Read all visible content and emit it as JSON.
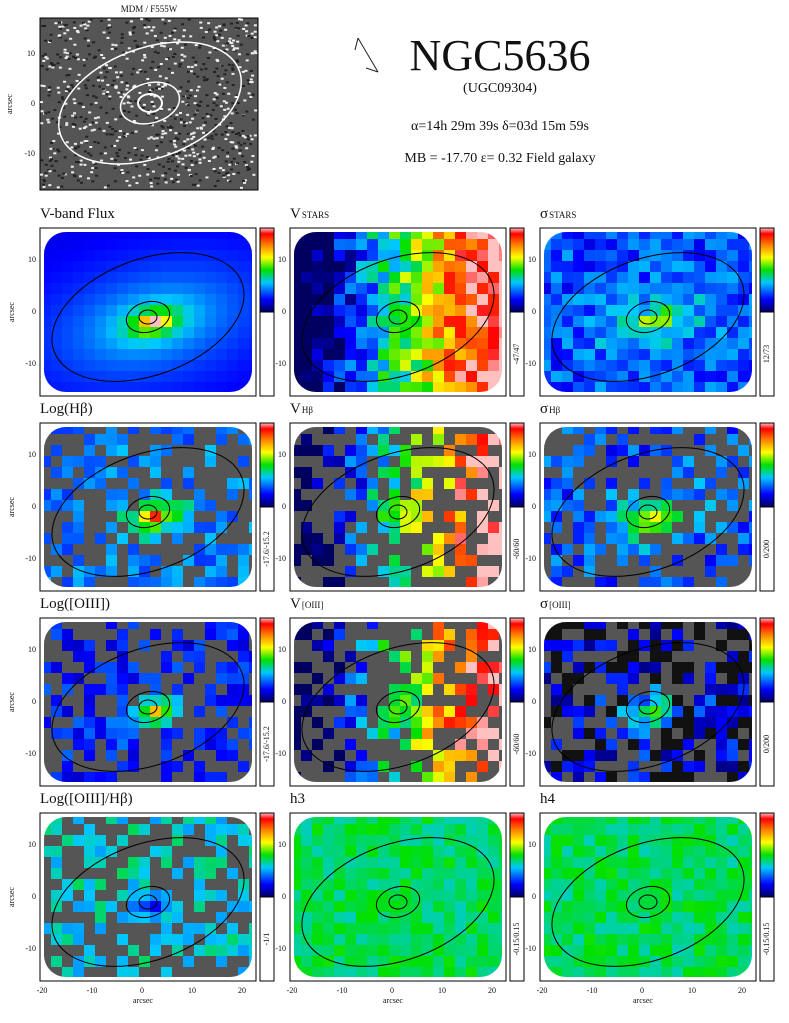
{
  "header": {
    "image_label": "MDM / F555W",
    "image_yticks": [
      "10",
      "0",
      "-10"
    ],
    "object": "NGC5636",
    "alt_name": "(UGC09304)",
    "coords": "α=14h 29m 39s    δ=03d 15m 59s",
    "properties": "MB = -17.70    ε= 0.32    Field galaxy"
  },
  "axes": {
    "axis_label": "arcsec",
    "xticks": [
      "-20",
      "-10",
      "0",
      "10",
      "20"
    ],
    "yticks": [
      "10",
      "0",
      "-10"
    ]
  },
  "panels": [
    {
      "title": "V-band Flux",
      "sub": ""
    },
    {
      "title": "V",
      "sub": "STARS",
      "range": "-47/47"
    },
    {
      "title": "σ",
      "sub": "STARS",
      "range": "12/73"
    },
    {
      "title": "Log(Hβ)",
      "sub": "",
      "range": "-17.6/-15.2"
    },
    {
      "title": "V",
      "sub": "Hβ",
      "range": "-60/60"
    },
    {
      "title": "σ",
      "sub": "Hβ",
      "range": "0/200"
    },
    {
      "title": "Log([OIII])",
      "sub": "",
      "range": "-17.6/-15.2"
    },
    {
      "title": "V",
      "sub": "[OIII]",
      "range": "-60/60"
    },
    {
      "title": "σ",
      "sub": "[OIII]",
      "range": "0/200"
    },
    {
      "title": "Log([OIII]/Hβ)",
      "sub": "",
      "range": "-1/1"
    },
    {
      "title": "h3",
      "sub": "",
      "range": "-0.15/0.15"
    },
    {
      "title": "h4",
      "sub": "",
      "range": "-0.15/0.15"
    }
  ]
}
